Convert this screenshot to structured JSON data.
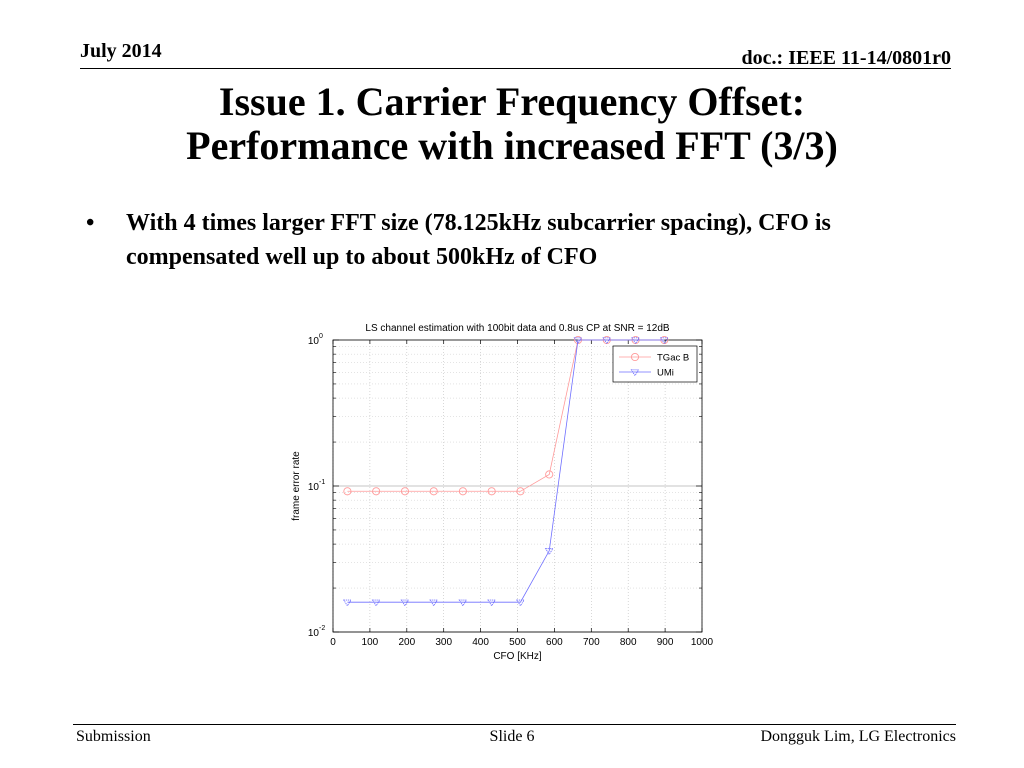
{
  "header": {
    "date": "July 2014",
    "doc_id": "doc.: IEEE 11-14/0801r0"
  },
  "slide": {
    "title_line1": "Issue 1. Carrier Frequency Offset:",
    "title_line2": "Performance with increased FFT (3/3)",
    "bullets": [
      {
        "marker": "•",
        "text": "With 4 times larger FFT size (78.125kHz subcarrier spacing), CFO is compensated well up to about 500kHz of CFO"
      }
    ]
  },
  "footer": {
    "left": "Submission",
    "center": "Slide 6",
    "right": "Dongguk Lim, LG Electronics"
  },
  "chart_data": {
    "type": "line",
    "title": "LS channel estimation with 100bit data and 0.8us CP at SNR = 12dB",
    "xlabel": "CFO [KHz]",
    "ylabel": "frame error rate",
    "xlim": [
      0,
      1000
    ],
    "ylim": [
      0.01,
      1
    ],
    "yscale": "log",
    "x_ticks": [
      0,
      100,
      200,
      300,
      400,
      500,
      600,
      700,
      800,
      900,
      1000
    ],
    "y_ticks": [
      {
        "base": "10",
        "exp": "-2",
        "value": 0.01
      },
      {
        "base": "10",
        "exp": "-1",
        "value": 0.1
      },
      {
        "base": "10",
        "exp": "0",
        "value": 1
      }
    ],
    "grid": true,
    "legend_position": "top-right",
    "series": [
      {
        "name": "TGac B",
        "color": "#ff9a9a",
        "marker": "circle",
        "x": [
          39,
          117,
          195,
          273,
          352,
          430,
          508,
          586,
          664,
          742,
          820,
          898
        ],
        "y": [
          0.092,
          0.092,
          0.092,
          0.092,
          0.092,
          0.092,
          0.092,
          0.12,
          1,
          1,
          1,
          1
        ]
      },
      {
        "name": "UMi",
        "color": "#6f6fff",
        "marker": "triangle-down",
        "x": [
          39,
          117,
          195,
          273,
          352,
          430,
          508,
          586,
          664,
          742,
          820,
          898
        ],
        "y": [
          0.016,
          0.016,
          0.016,
          0.016,
          0.016,
          0.016,
          0.016,
          0.036,
          1,
          1,
          1,
          1
        ]
      }
    ]
  }
}
